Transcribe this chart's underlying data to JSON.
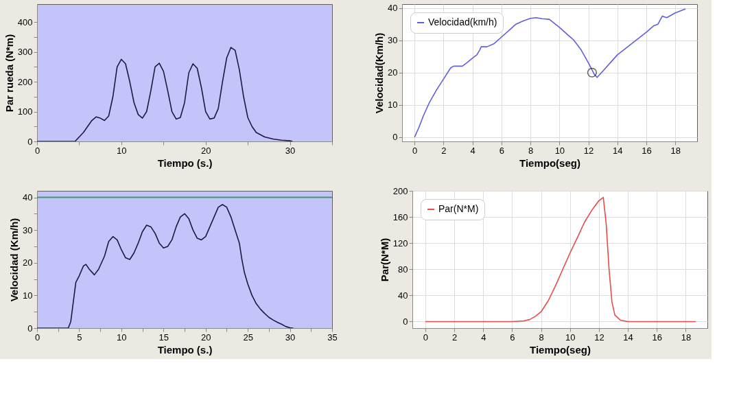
{
  "chart_data": [
    {
      "type": "line",
      "xlabel": "Tiempo (s.)",
      "ylabel": "Par rueda (N*m)",
      "xlim": [
        0,
        35
      ],
      "ylim": [
        0,
        460
      ],
      "grid": false,
      "legend": false,
      "xticks": [
        0,
        {
          "value": 5,
          "label": null
        },
        10,
        {
          "value": 15,
          "label": null
        },
        20,
        {
          "value": 25,
          "label": null
        },
        30,
        {
          "value": 35,
          "label": null
        }
      ],
      "yticks": [
        0,
        {
          "value": 50,
          "label": null
        },
        100,
        {
          "value": 150,
          "label": null
        },
        200,
        {
          "value": 250,
          "label": null
        },
        300,
        {
          "value": 350,
          "label": null
        },
        400
      ],
      "series": [
        {
          "color": "#1a1a40",
          "x": [
            0,
            4.5,
            5.5,
            6.5,
            7,
            7.5,
            8,
            8.5,
            9,
            9.5,
            10,
            10.5,
            11,
            11.5,
            12,
            12.5,
            13,
            13.5,
            14,
            14.5,
            15,
            15.5,
            16,
            16.5,
            17,
            17.5,
            18,
            18.5,
            19,
            19.5,
            20,
            20.5,
            21,
            21.5,
            22,
            22.5,
            23,
            23.5,
            24,
            24.5,
            25,
            25.5,
            26,
            27,
            28,
            29,
            30,
            30.3
          ],
          "values": [
            0,
            0,
            30,
            70,
            82,
            78,
            70,
            85,
            150,
            250,
            275,
            260,
            200,
            130,
            90,
            78,
            100,
            170,
            250,
            262,
            235,
            170,
            100,
            75,
            80,
            130,
            230,
            260,
            245,
            180,
            100,
            75,
            78,
            110,
            200,
            280,
            315,
            305,
            240,
            150,
            80,
            50,
            30,
            15,
            8,
            4,
            2,
            0
          ]
        }
      ]
    },
    {
      "type": "line",
      "xlabel": "Tiempo(seg)",
      "ylabel": "Velocidad(Km/h)",
      "xlim": [
        -0.86,
        19.5
      ],
      "ylim": [
        -1.3,
        41.2
      ],
      "grid": true,
      "legend": "top left",
      "xticks": [
        0,
        2,
        4,
        6,
        8,
        10,
        12,
        14,
        16,
        18
      ],
      "yticks": [
        0,
        10,
        20,
        30,
        40
      ],
      "series": [
        {
          "name": "Velocidad(km/h)",
          "color": "#5f5fe0",
          "x": [
            0,
            0.3,
            0.6,
            1,
            1.5,
            2,
            2.5,
            2.7,
            3.3,
            3.6,
            4,
            4.3,
            4.5,
            4.6,
            5,
            5.5,
            6,
            6.5,
            7,
            7.5,
            8,
            8.4,
            8.8,
            9.3,
            10,
            10.5,
            11,
            11.5,
            12,
            12.4,
            12.6,
            13,
            13.5,
            14,
            15,
            16,
            16.5,
            16.8,
            17.1,
            17.4,
            18,
            18.7
          ],
          "values": [
            0,
            3,
            6.5,
            10.5,
            14.5,
            18,
            21.5,
            22,
            22,
            23,
            24.5,
            25.5,
            27,
            28,
            28,
            29,
            31,
            33,
            35,
            36,
            36.8,
            37,
            36.7,
            36.5,
            34,
            32,
            30,
            27,
            23,
            19.5,
            18.5,
            20.5,
            23,
            25.5,
            29,
            32.5,
            34.5,
            35,
            37.5,
            37,
            38.5,
            39.7
          ]
        },
        {
          "type": "scatter",
          "marker": "circle",
          "color": "#202020",
          "x": [
            12.25
          ],
          "values": [
            20
          ]
        }
      ]
    },
    {
      "type": "line",
      "xlabel": "Tiempo (s.)",
      "ylabel": "Velocidad (Km/h)",
      "xlim": [
        0,
        35
      ],
      "ylim": [
        0,
        42
      ],
      "grid": false,
      "legend": false,
      "xticks": [
        0,
        {
          "value": 2.5,
          "label": null
        },
        5,
        {
          "value": 7.5,
          "label": null
        },
        10,
        {
          "value": 12.5,
          "label": null
        },
        15,
        {
          "value": 17.5,
          "label": null
        },
        20,
        {
          "value": 22.5,
          "label": null
        },
        25,
        {
          "value": 27.5,
          "label": null
        },
        30,
        {
          "value": 32.5,
          "label": null
        },
        35
      ],
      "yticks": [
        0,
        {
          "value": 5,
          "label": null
        },
        10,
        {
          "value": 15,
          "label": null
        },
        20,
        {
          "value": 25,
          "label": null
        },
        30,
        {
          "value": 35,
          "label": null
        },
        40
      ],
      "ref_lines": [
        {
          "axis": "y",
          "value": 40,
          "color": "#3a9a6a"
        }
      ],
      "series": [
        {
          "color": "#1a1a40",
          "x": [
            0,
            3.7,
            4,
            4.3,
            4.6,
            5,
            5.5,
            5.8,
            6.2,
            6.8,
            7.3,
            8,
            8.5,
            9,
            9.5,
            10,
            10.5,
            11,
            11.5,
            12,
            12.5,
            13,
            13.5,
            14,
            14.5,
            15,
            15.5,
            16,
            16.5,
            17,
            17.5,
            18,
            18.5,
            19,
            19.5,
            20,
            20.5,
            21,
            21.5,
            22,
            22.5,
            23,
            23.5,
            24,
            24.3,
            24.6,
            25,
            25.5,
            26,
            26.5,
            27,
            27.5,
            28,
            28.5,
            29,
            29.5,
            30,
            30.4
          ],
          "values": [
            0,
            0,
            2,
            8,
            14,
            16,
            19,
            19.5,
            18,
            16.3,
            18,
            22,
            26.5,
            28,
            27,
            24,
            21.5,
            21,
            23,
            26,
            29.5,
            31.5,
            31,
            29,
            26,
            24.5,
            25,
            27,
            31,
            34,
            35,
            33.5,
            30,
            27.5,
            27,
            28,
            31,
            34,
            37,
            37.8,
            37,
            34,
            30,
            26,
            21,
            17,
            13.5,
            10,
            7.5,
            5.8,
            4.5,
            3.3,
            2.5,
            1.8,
            1.2,
            0.5,
            0.1,
            0
          ]
        }
      ]
    },
    {
      "type": "line",
      "xlabel": "Tiempo(seg)",
      "ylabel": "Par(N*M)",
      "xlim": [
        -0.9,
        19.5
      ],
      "ylim": [
        -10,
        200
      ],
      "grid": true,
      "legend": "top left",
      "xticks": [
        0,
        2,
        4,
        6,
        8,
        10,
        12,
        14,
        16,
        18
      ],
      "yticks": [
        0,
        40,
        80,
        120,
        160,
        200
      ],
      "series": [
        {
          "name": "Par(N*M)",
          "color": "#e84a4a",
          "x": [
            0,
            6,
            6.8,
            7.2,
            7.6,
            8,
            8.5,
            9,
            9.5,
            10,
            10.5,
            11,
            11.5,
            12,
            12.3,
            12.5,
            12.7,
            12.9,
            13.1,
            13.5,
            14,
            18.7
          ],
          "values": [
            0,
            0,
            1,
            3,
            8,
            15,
            32,
            55,
            80,
            105,
            128,
            152,
            170,
            185,
            190,
            150,
            80,
            30,
            10,
            2,
            0,
            0
          ]
        }
      ]
    }
  ]
}
